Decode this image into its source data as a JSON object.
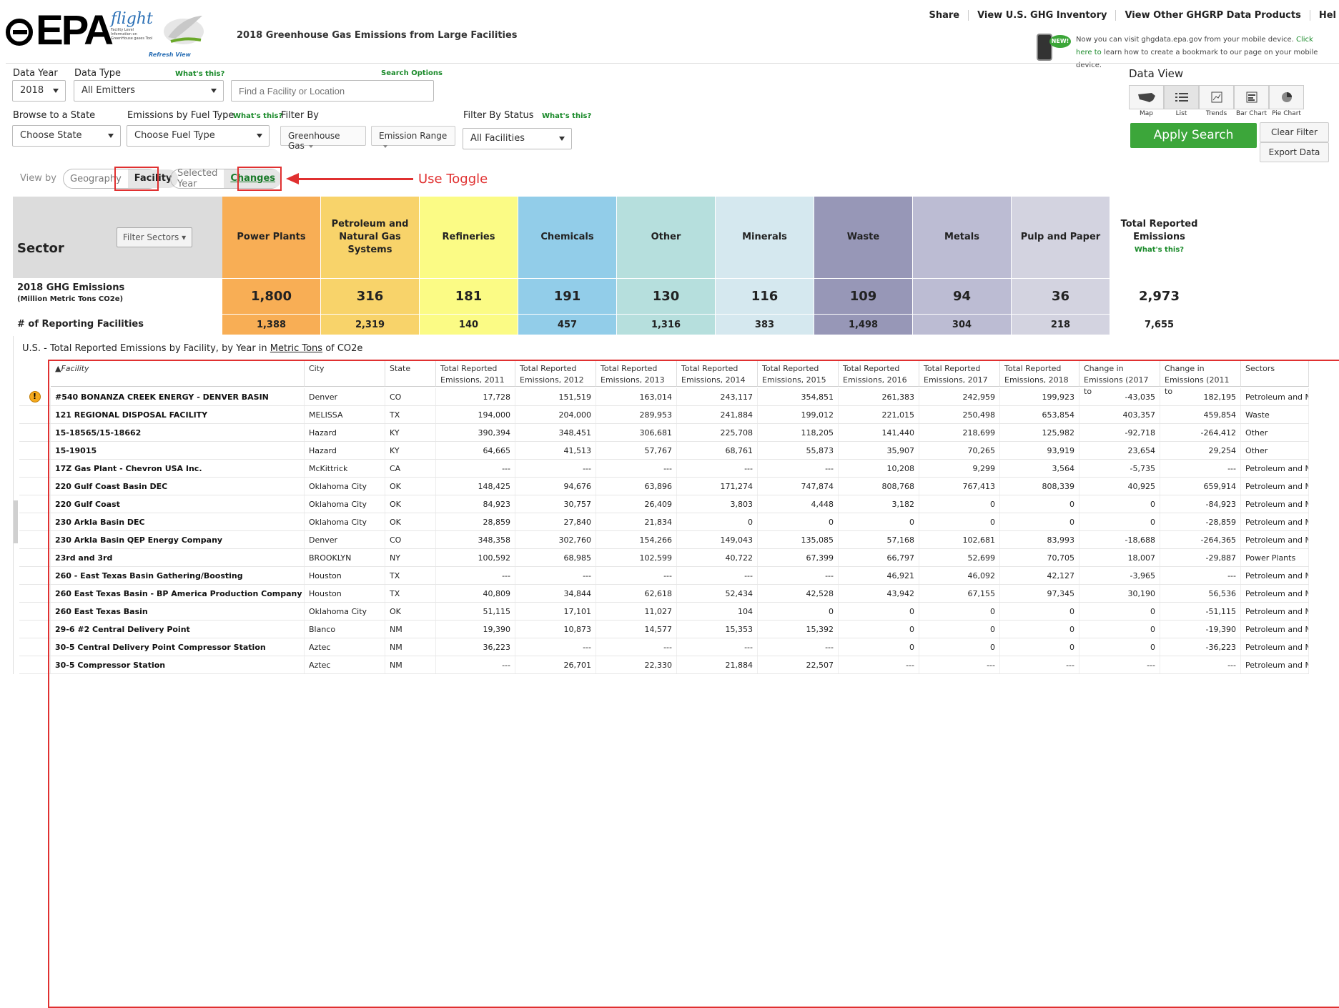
{
  "header": {
    "logo_text": "EPA",
    "flight_word": "flight",
    "flight_sub": "Facility Level Information on GreenHouse gases Tool",
    "refresh": "Refresh View",
    "site_title": "2018 Greenhouse Gas Emissions from Large Facilities",
    "nav": [
      "Share",
      "View U.S. GHG Inventory",
      "View Other GHGRP Data Products",
      "Hel"
    ],
    "new_badge": "NEW!",
    "mobile_text": "Now you can visit ghgdata.epa.gov from your mobile device.",
    "mobile_link": "Click here to",
    "mobile_text2": "learn how to create a bookmark to our page on your mobile device."
  },
  "filters": {
    "data_year_label": "Data Year",
    "data_year_value": "2018",
    "data_type_label": "Data Type",
    "data_type_whats": "What's this?",
    "data_type_value": "All Emitters",
    "search_options": "Search Options",
    "search_placeholder": "Find a Facility or Location",
    "browse_label": "Browse to a State",
    "state_value": "Choose State",
    "fuel_label": "Emissions by Fuel Type",
    "fuel_whats": "What's this?",
    "fuel_value": "Choose Fuel Type",
    "filter_by_label": "Filter By",
    "gas_btn": "Greenhouse Gas",
    "range_btn": "Emission Range",
    "status_label": "Filter By Status",
    "status_whats": "What's this?",
    "status_value": "All Facilities"
  },
  "dataview": {
    "title": "Data View",
    "buttons": [
      "Map",
      "List",
      "Trends",
      "Bar Chart",
      "Pie Chart"
    ],
    "apply": "Apply Search",
    "clear": "Clear Filter",
    "export": "Export Data"
  },
  "viewby": {
    "label": "View by",
    "geography": "Geography",
    "facility": "Facility",
    "selected_year": "Selected Year",
    "changes": "Changes",
    "annotation": "Use Toggle"
  },
  "sectors": {
    "title": "Sector",
    "filter_btn": "Filter Sectors",
    "emissions_label": "2018 GHG Emissions",
    "emissions_unit": "(Million Metric Tons CO2e)",
    "facilities_label": "# of Reporting Facilities",
    "total_whats": "What's this?",
    "columns": [
      {
        "name": "Power Plants",
        "emissions": "1,800",
        "facilities": "1,388",
        "color": "#f8ae55"
      },
      {
        "name": "Petroleum and Natural Gas Systems",
        "emissions": "316",
        "facilities": "2,319",
        "color": "#f8d36a"
      },
      {
        "name": "Refineries",
        "emissions": "181",
        "facilities": "140",
        "color": "#fbfb85"
      },
      {
        "name": "Chemicals",
        "emissions": "191",
        "facilities": "457",
        "color": "#92cde9"
      },
      {
        "name": "Other",
        "emissions": "130",
        "facilities": "1,316",
        "color": "#b6dfdd"
      },
      {
        "name": "Minerals",
        "emissions": "116",
        "facilities": "383",
        "color": "#d5e8ef"
      },
      {
        "name": "Waste",
        "emissions": "109",
        "facilities": "1,498",
        "color": "#9797b7"
      },
      {
        "name": "Metals",
        "emissions": "94",
        "facilities": "304",
        "color": "#bcbcd3"
      },
      {
        "name": "Pulp and Paper",
        "emissions": "36",
        "facilities": "218",
        "color": "#d3d3e0"
      },
      {
        "name": "Total Reported Emissions",
        "emissions": "2,973",
        "facilities": "7,655",
        "color": "#ececec"
      }
    ]
  },
  "table": {
    "caption_pre": "U.S. - Total Reported Emissions by Facility, by Year in",
    "caption_link": "Metric Tons",
    "caption_post": "of CO2e",
    "headers": [
      "▲Facility",
      "City",
      "State",
      "Total Reported Emissions, 2011",
      "Total Reported Emissions, 2012",
      "Total Reported Emissions, 2013",
      "Total Reported Emissions, 2014",
      "Total Reported Emissions, 2015",
      "Total Reported Emissions, 2016",
      "Total Reported Emissions, 2017",
      "Total Reported Emissions, 2018",
      "Change in Emissions (2017 to",
      "Change in Emissions (2011 to",
      "Sectors"
    ],
    "rows": [
      {
        "warn": true,
        "cells": [
          "#540 BONANZA CREEK ENERGY - DENVER BASIN",
          "Denver",
          "CO",
          "17,728",
          "151,519",
          "163,014",
          "243,117",
          "354,851",
          "261,383",
          "242,959",
          "199,923",
          "-43,035",
          "182,195",
          "Petroleum and Na..."
        ]
      },
      {
        "warn": false,
        "cells": [
          "121 REGIONAL DISPOSAL FACILITY",
          "MELISSA",
          "TX",
          "194,000",
          "204,000",
          "289,953",
          "241,884",
          "199,012",
          "221,015",
          "250,498",
          "653,854",
          "403,357",
          "459,854",
          "Waste"
        ]
      },
      {
        "warn": false,
        "cells": [
          "15-18565/15-18662",
          "Hazard",
          "KY",
          "390,394",
          "348,451",
          "306,681",
          "225,708",
          "118,205",
          "141,440",
          "218,699",
          "125,982",
          "-92,718",
          "-264,412",
          "Other"
        ]
      },
      {
        "warn": false,
        "cells": [
          "15-19015",
          "Hazard",
          "KY",
          "64,665",
          "41,513",
          "57,767",
          "68,761",
          "55,873",
          "35,907",
          "70,265",
          "93,919",
          "23,654",
          "29,254",
          "Other"
        ]
      },
      {
        "warn": false,
        "cells": [
          "17Z Gas Plant - Chevron USA Inc.",
          "McKittrick",
          "CA",
          "---",
          "---",
          "---",
          "---",
          "---",
          "10,208",
          "9,299",
          "3,564",
          "-5,735",
          "---",
          "Petroleum and Na..."
        ]
      },
      {
        "warn": false,
        "cells": [
          "220 Gulf Coast Basin DEC",
          "Oklahoma City",
          "OK",
          "148,425",
          "94,676",
          "63,896",
          "171,274",
          "747,874",
          "808,768",
          "767,413",
          "808,339",
          "40,925",
          "659,914",
          "Petroleum and Na..."
        ]
      },
      {
        "warn": false,
        "cells": [
          "220 Gulf Coast",
          "Oklahoma City",
          "OK",
          "84,923",
          "30,757",
          "26,409",
          "3,803",
          "4,448",
          "3,182",
          "0",
          "0",
          "0",
          "-84,923",
          "Petroleum and Na..."
        ]
      },
      {
        "warn": false,
        "cells": [
          "230 Arkla Basin DEC",
          "Oklahoma City",
          "OK",
          "28,859",
          "27,840",
          "21,834",
          "0",
          "0",
          "0",
          "0",
          "0",
          "0",
          "-28,859",
          "Petroleum and Na..."
        ]
      },
      {
        "warn": false,
        "cells": [
          "230 Arkla Basin QEP Energy Company",
          "Denver",
          "CO",
          "348,358",
          "302,760",
          "154,266",
          "149,043",
          "135,085",
          "57,168",
          "102,681",
          "83,993",
          "-18,688",
          "-264,365",
          "Petroleum and Na..."
        ]
      },
      {
        "warn": false,
        "cells": [
          "23rd and 3rd",
          "BROOKLYN",
          "NY",
          "100,592",
          "68,985",
          "102,599",
          "40,722",
          "67,399",
          "66,797",
          "52,699",
          "70,705",
          "18,007",
          "-29,887",
          "Power Plants"
        ]
      },
      {
        "warn": false,
        "cells": [
          "260 - East Texas Basin Gathering/Boosting",
          "Houston",
          "TX",
          "---",
          "---",
          "---",
          "---",
          "---",
          "46,921",
          "46,092",
          "42,127",
          "-3,965",
          "---",
          "Petroleum and Na..."
        ]
      },
      {
        "warn": false,
        "cells": [
          "260 East Texas Basin - BP America Production Company",
          "Houston",
          "TX",
          "40,809",
          "34,844",
          "62,618",
          "52,434",
          "42,528",
          "43,942",
          "67,155",
          "97,345",
          "30,190",
          "56,536",
          "Petroleum and Na..."
        ]
      },
      {
        "warn": false,
        "cells": [
          "260 East Texas Basin",
          "Oklahoma City",
          "OK",
          "51,115",
          "17,101",
          "11,027",
          "104",
          "0",
          "0",
          "0",
          "0",
          "0",
          "-51,115",
          "Petroleum and Na..."
        ]
      },
      {
        "warn": false,
        "cells": [
          "29-6 #2 Central Delivery Point",
          "Blanco",
          "NM",
          "19,390",
          "10,873",
          "14,577",
          "15,353",
          "15,392",
          "0",
          "0",
          "0",
          "0",
          "-19,390",
          "Petroleum and Na..."
        ]
      },
      {
        "warn": false,
        "cells": [
          "30-5 Central Delivery Point Compressor Station",
          "Aztec",
          "NM",
          "36,223",
          "---",
          "---",
          "---",
          "---",
          "0",
          "0",
          "0",
          "0",
          "-36,223",
          "Petroleum and Na..."
        ]
      },
      {
        "warn": false,
        "cells": [
          "30-5 Compressor Station",
          "Aztec",
          "NM",
          "---",
          "26,701",
          "22,330",
          "21,884",
          "22,507",
          "---",
          "---",
          "---",
          "---",
          "---",
          "Petroleum and Na..."
        ]
      }
    ]
  }
}
